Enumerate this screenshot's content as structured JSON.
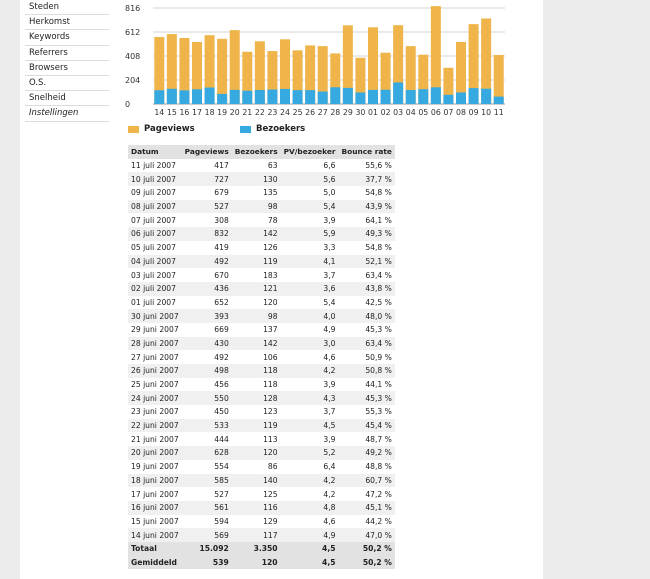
{
  "menu": {
    "items": [
      "Steden",
      "Herkomst",
      "Keywords",
      "Referrers",
      "Browsers",
      "O.S.",
      "Snelheid"
    ],
    "settings": "Instellingen"
  },
  "chart_data": {
    "type": "bar",
    "categories": [
      "14",
      "15",
      "16",
      "17",
      "18",
      "19",
      "20",
      "21",
      "22",
      "23",
      "24",
      "25",
      "26",
      "27",
      "28",
      "29",
      "30",
      "01",
      "02",
      "03",
      "04",
      "05",
      "06",
      "07",
      "08",
      "09",
      "10",
      "11"
    ],
    "series": [
      {
        "name": "Pageviews",
        "color": "#f0b54a",
        "values": [
          569,
          594,
          561,
          527,
          585,
          554,
          628,
          444,
          533,
          450,
          550,
          456,
          498,
          492,
          430,
          669,
          393,
          652,
          436,
          670,
          492,
          419,
          832,
          308,
          527,
          679,
          727,
          417
        ]
      },
      {
        "name": "Bezoekers",
        "color": "#36a9e1",
        "values": [
          117,
          129,
          116,
          125,
          140,
          86,
          120,
          113,
          119,
          123,
          128,
          118,
          118,
          106,
          142,
          137,
          98,
          120,
          121,
          183,
          119,
          126,
          142,
          78,
          98,
          135,
          130,
          63
        ]
      }
    ],
    "y_ticks": [
      "816",
      "612",
      "408",
      "204",
      "0"
    ],
    "ylim": [
      0,
      816
    ],
    "grid": true
  },
  "table": {
    "headers": {
      "date": "Datum",
      "pageviews": "Pageviews",
      "visitors": "Bezoekers",
      "pv": "PV/bezoeker",
      "bounce": "Bounce rate"
    },
    "rows": [
      {
        "date": "11 juli 2007",
        "pageviews": "417",
        "visitors": "63",
        "pv": "6,6",
        "bounce": "55,6 %"
      },
      {
        "date": "10 juli 2007",
        "pageviews": "727",
        "visitors": "130",
        "pv": "5,6",
        "bounce": "37,7 %"
      },
      {
        "date": "09 juli 2007",
        "pageviews": "679",
        "visitors": "135",
        "pv": "5,0",
        "bounce": "54,8 %"
      },
      {
        "date": "08 juli 2007",
        "pageviews": "527",
        "visitors": "98",
        "pv": "5,4",
        "bounce": "43,9 %"
      },
      {
        "date": "07 juli 2007",
        "pageviews": "308",
        "visitors": "78",
        "pv": "3,9",
        "bounce": "64,1 %"
      },
      {
        "date": "06 juli 2007",
        "pageviews": "832",
        "visitors": "142",
        "pv": "5,9",
        "bounce": "49,3 %"
      },
      {
        "date": "05 juli 2007",
        "pageviews": "419",
        "visitors": "126",
        "pv": "3,3",
        "bounce": "54,8 %"
      },
      {
        "date": "04 juli 2007",
        "pageviews": "492",
        "visitors": "119",
        "pv": "4,1",
        "bounce": "52,1 %"
      },
      {
        "date": "03 juli 2007",
        "pageviews": "670",
        "visitors": "183",
        "pv": "3,7",
        "bounce": "63,4 %"
      },
      {
        "date": "02 juli 2007",
        "pageviews": "436",
        "visitors": "121",
        "pv": "3,6",
        "bounce": "43,8 %"
      },
      {
        "date": "01 juli 2007",
        "pageviews": "652",
        "visitors": "120",
        "pv": "5,4",
        "bounce": "42,5 %"
      },
      {
        "date": "30 juni 2007",
        "pageviews": "393",
        "visitors": "98",
        "pv": "4,0",
        "bounce": "48,0 %"
      },
      {
        "date": "29 juni 2007",
        "pageviews": "669",
        "visitors": "137",
        "pv": "4,9",
        "bounce": "45,3 %"
      },
      {
        "date": "28 juni 2007",
        "pageviews": "430",
        "visitors": "142",
        "pv": "3,0",
        "bounce": "63,4 %"
      },
      {
        "date": "27 juni 2007",
        "pageviews": "492",
        "visitors": "106",
        "pv": "4,6",
        "bounce": "50,9 %"
      },
      {
        "date": "26 juni 2007",
        "pageviews": "498",
        "visitors": "118",
        "pv": "4,2",
        "bounce": "50,8 %"
      },
      {
        "date": "25 juni 2007",
        "pageviews": "456",
        "visitors": "118",
        "pv": "3,9",
        "bounce": "44,1 %"
      },
      {
        "date": "24 juni 2007",
        "pageviews": "550",
        "visitors": "128",
        "pv": "4,3",
        "bounce": "45,3 %"
      },
      {
        "date": "23 juni 2007",
        "pageviews": "450",
        "visitors": "123",
        "pv": "3,7",
        "bounce": "55,3 %"
      },
      {
        "date": "22 juni 2007",
        "pageviews": "533",
        "visitors": "119",
        "pv": "4,5",
        "bounce": "45,4 %"
      },
      {
        "date": "21 juni 2007",
        "pageviews": "444",
        "visitors": "113",
        "pv": "3,9",
        "bounce": "48,7 %"
      },
      {
        "date": "20 juni 2007",
        "pageviews": "628",
        "visitors": "120",
        "pv": "5,2",
        "bounce": "49,2 %"
      },
      {
        "date": "19 juni 2007",
        "pageviews": "554",
        "visitors": "86",
        "pv": "6,4",
        "bounce": "48,8 %"
      },
      {
        "date": "18 juni 2007",
        "pageviews": "585",
        "visitors": "140",
        "pv": "4,2",
        "bounce": "60,7 %"
      },
      {
        "date": "17 juni 2007",
        "pageviews": "527",
        "visitors": "125",
        "pv": "4,2",
        "bounce": "47,2 %"
      },
      {
        "date": "16 juni 2007",
        "pageviews": "561",
        "visitors": "116",
        "pv": "4,8",
        "bounce": "45,1 %"
      },
      {
        "date": "15 juni 2007",
        "pageviews": "594",
        "visitors": "129",
        "pv": "4,6",
        "bounce": "44,2 %"
      },
      {
        "date": "14 juni 2007",
        "pageviews": "569",
        "visitors": "117",
        "pv": "4,9",
        "bounce": "47,0 %"
      }
    ],
    "total": {
      "label": "Totaal",
      "pageviews": "15.092",
      "visitors": "3.350",
      "pv": "4,5",
      "bounce": "50,2 %"
    },
    "average": {
      "label": "Gemiddeld",
      "pageviews": "539",
      "visitors": "120",
      "pv": "4,5",
      "bounce": "50,2 %"
    }
  }
}
